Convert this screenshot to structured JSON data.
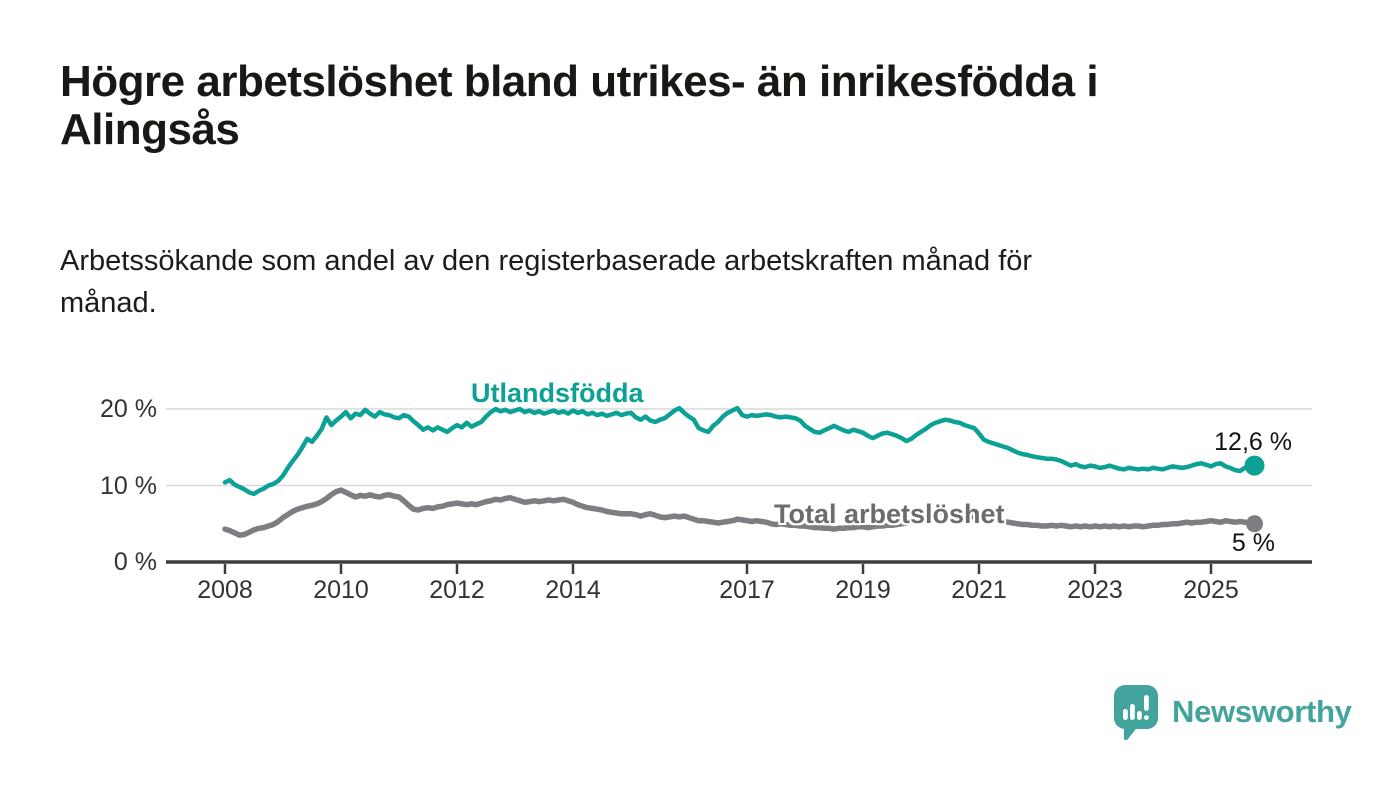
{
  "header": {
    "title_line1": "Högre arbetslöshet bland utrikes- än inrikesfödda i",
    "title_line2": "Alingsås",
    "subtitle_line1": "Arbetssökande som andel av den registerbaserade arbetskraften månad för",
    "subtitle_line2": "månad."
  },
  "footer": {
    "brand": "Newsworthy"
  },
  "colors": {
    "background": "#ffffff",
    "title_text": "#181815",
    "axis_text": "#333333",
    "axis_line": "#3d3d3d",
    "gridline": "#d9d9d9",
    "series_foreign": "#0ca195",
    "series_total": "#7d7d82",
    "series_total_label": "#6c6c70",
    "value_label": "#141414",
    "logo_teal": "#43a49d"
  },
  "chart_data": {
    "type": "line",
    "title": "Högre arbetslöshet bland utrikes- än inrikesfödda i Alingsås",
    "subtitle": "Arbetssökande som andel av den registerbaserade arbetskraften månad för månad.",
    "xlabel": "",
    "ylabel": "",
    "grid": "horizontal",
    "legend_position": "inline-labels",
    "x_start_year": 2008,
    "points_per_year": 12,
    "x_tick_years": [
      2008,
      2010,
      2012,
      2014,
      2017,
      2019,
      2021,
      2023,
      2025
    ],
    "x_tick_labels": [
      "2008",
      "2010",
      "2012",
      "2014",
      "2017",
      "2019",
      "2021",
      "2023",
      "2025"
    ],
    "y_ticks": [
      0,
      10,
      20
    ],
    "y_tick_labels": [
      "0 %",
      "10 %",
      "20 %"
    ],
    "ylim": [
      0,
      22
    ],
    "series": [
      {
        "name": "Utlandsfödda",
        "color": "#0ca195",
        "end_label": "12,6 %",
        "end_value": 12.6,
        "values": [
          10.4,
          10.7,
          10.1,
          9.8,
          9.5,
          9.1,
          8.9,
          9.3,
          9.6,
          10.0,
          10.2,
          10.6,
          11.3,
          12.3,
          13.2,
          14.0,
          15.0,
          16.1,
          15.7,
          16.5,
          17.4,
          18.9,
          17.9,
          18.5,
          19.0,
          19.6,
          18.8,
          19.4,
          19.2,
          19.9,
          19.4,
          19.0,
          19.6,
          19.3,
          19.2,
          18.9,
          18.8,
          19.2,
          19.0,
          18.4,
          17.9,
          17.3,
          17.6,
          17.2,
          17.6,
          17.3,
          17.0,
          17.5,
          17.9,
          17.6,
          18.2,
          17.7,
          18.0,
          18.3,
          19.0,
          19.6,
          20.0,
          19.7,
          19.9,
          19.6,
          19.8,
          20.0,
          19.6,
          19.8,
          19.5,
          19.7,
          19.4,
          19.6,
          19.8,
          19.5,
          19.7,
          19.4,
          19.8,
          19.5,
          19.7,
          19.3,
          19.5,
          19.2,
          19.4,
          19.1,
          19.3,
          19.5,
          19.2,
          19.4,
          19.5,
          18.9,
          18.6,
          19.0,
          18.5,
          18.3,
          18.6,
          18.8,
          19.3,
          19.8,
          20.1,
          19.5,
          19.0,
          18.6,
          17.5,
          17.2,
          17.0,
          17.8,
          18.3,
          19.0,
          19.5,
          19.8,
          20.1,
          19.2,
          19.0,
          19.2,
          19.1,
          19.2,
          19.3,
          19.2,
          19.0,
          18.9,
          19.0,
          18.9,
          18.8,
          18.5,
          17.8,
          17.4,
          17.0,
          16.9,
          17.2,
          17.5,
          17.8,
          17.5,
          17.2,
          17.0,
          17.3,
          17.1,
          16.9,
          16.5,
          16.2,
          16.5,
          16.8,
          16.9,
          16.7,
          16.5,
          16.2,
          15.8,
          16.1,
          16.6,
          17.0,
          17.4,
          17.9,
          18.2,
          18.4,
          18.6,
          18.5,
          18.3,
          18.2,
          17.9,
          17.7,
          17.5,
          16.8,
          16.0,
          15.7,
          15.5,
          15.3,
          15.1,
          14.9,
          14.6,
          14.3,
          14.1,
          14.0,
          13.8,
          13.7,
          13.6,
          13.5,
          13.5,
          13.4,
          13.2,
          12.9,
          12.6,
          12.8,
          12.5,
          12.4,
          12.6,
          12.5,
          12.3,
          12.4,
          12.6,
          12.4,
          12.2,
          12.1,
          12.3,
          12.2,
          12.1,
          12.2,
          12.1,
          12.3,
          12.2,
          12.1,
          12.3,
          12.5,
          12.4,
          12.3,
          12.4,
          12.6,
          12.8,
          12.9,
          12.7,
          12.5,
          12.8,
          12.9,
          12.5,
          12.3,
          12.0,
          11.9,
          12.3,
          12.5,
          12.6
        ]
      },
      {
        "name": "Total arbetslöshet",
        "color": "#7d7d82",
        "end_label": "5 %",
        "end_value": 5.0,
        "values": [
          4.3,
          4.1,
          3.8,
          3.5,
          3.6,
          3.9,
          4.2,
          4.4,
          4.5,
          4.7,
          4.9,
          5.3,
          5.8,
          6.2,
          6.6,
          6.9,
          7.1,
          7.3,
          7.4,
          7.6,
          7.9,
          8.3,
          8.8,
          9.2,
          9.4,
          9.1,
          8.8,
          8.5,
          8.7,
          8.6,
          8.8,
          8.6,
          8.5,
          8.7,
          8.8,
          8.6,
          8.5,
          8.0,
          7.4,
          6.9,
          6.8,
          7.0,
          7.1,
          7.0,
          7.2,
          7.3,
          7.5,
          7.6,
          7.7,
          7.6,
          7.5,
          7.6,
          7.5,
          7.7,
          7.9,
          8.0,
          8.2,
          8.1,
          8.3,
          8.4,
          8.2,
          8.0,
          7.8,
          7.9,
          8.0,
          7.9,
          8.0,
          8.1,
          8.0,
          8.1,
          8.2,
          8.0,
          7.8,
          7.5,
          7.3,
          7.1,
          7.0,
          6.9,
          6.8,
          6.6,
          6.5,
          6.4,
          6.3,
          6.3,
          6.3,
          6.2,
          6.0,
          6.2,
          6.3,
          6.1,
          5.9,
          5.8,
          5.9,
          6.0,
          5.9,
          6.0,
          5.8,
          5.6,
          5.4,
          5.4,
          5.3,
          5.2,
          5.1,
          5.2,
          5.3,
          5.4,
          5.6,
          5.5,
          5.4,
          5.3,
          5.4,
          5.3,
          5.2,
          5.0,
          4.9,
          5.0,
          4.9,
          4.8,
          4.8,
          4.7,
          4.7,
          4.6,
          4.5,
          4.5,
          4.4,
          4.4,
          4.3,
          4.4,
          4.4,
          4.5,
          4.5,
          4.6,
          4.6,
          4.5,
          4.6,
          4.7,
          4.7,
          4.8,
          4.8,
          4.9,
          5.0,
          5.1,
          5.3,
          5.5,
          5.7,
          5.9,
          6.2,
          6.4,
          6.5,
          6.5,
          6.4,
          6.3,
          6.2,
          6.1,
          6.0,
          5.9,
          5.8,
          5.7,
          5.6,
          5.5,
          5.4,
          5.3,
          5.2,
          5.1,
          5.0,
          4.9,
          4.9,
          4.8,
          4.8,
          4.7,
          4.7,
          4.8,
          4.7,
          4.8,
          4.7,
          4.6,
          4.7,
          4.6,
          4.7,
          4.6,
          4.7,
          4.6,
          4.7,
          4.6,
          4.7,
          4.6,
          4.7,
          4.6,
          4.7,
          4.7,
          4.6,
          4.7,
          4.8,
          4.8,
          4.9,
          4.9,
          5.0,
          5.0,
          5.1,
          5.2,
          5.1,
          5.2,
          5.2,
          5.3,
          5.4,
          5.3,
          5.2,
          5.4,
          5.3,
          5.2,
          5.3,
          5.2,
          5.1,
          5.0
        ]
      }
    ]
  }
}
